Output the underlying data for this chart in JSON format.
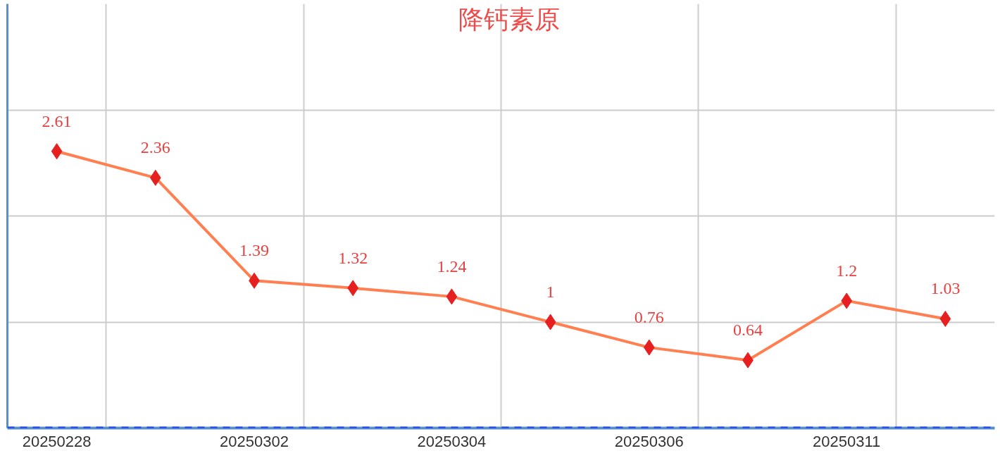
{
  "chart_data": {
    "type": "line",
    "title": "降钙素原",
    "categories": [
      "20250228",
      null,
      "20250302",
      null,
      "20250304",
      null,
      "20250306",
      null,
      "20250311",
      null
    ],
    "series": [
      {
        "color": "#ff7f50",
        "values": [
          2.61,
          2.36,
          1.39,
          1.32,
          1.24,
          1,
          0.76,
          0.64,
          1.2,
          1.03
        ]
      }
    ],
    "marker": "diamond",
    "data_labels": true,
    "grid": true,
    "tick_labels": "x",
    "ylim": [
      0,
      4
    ],
    "yticks": [
      {
        "value": 1,
        "label": null
      },
      {
        "value": 2,
        "label": null
      },
      {
        "value": 3,
        "label": null
      }
    ],
    "ref_lines": [
      {
        "axis": "y",
        "value": 0,
        "color": "#1f3fff",
        "line_style": "dashed"
      }
    ]
  }
}
